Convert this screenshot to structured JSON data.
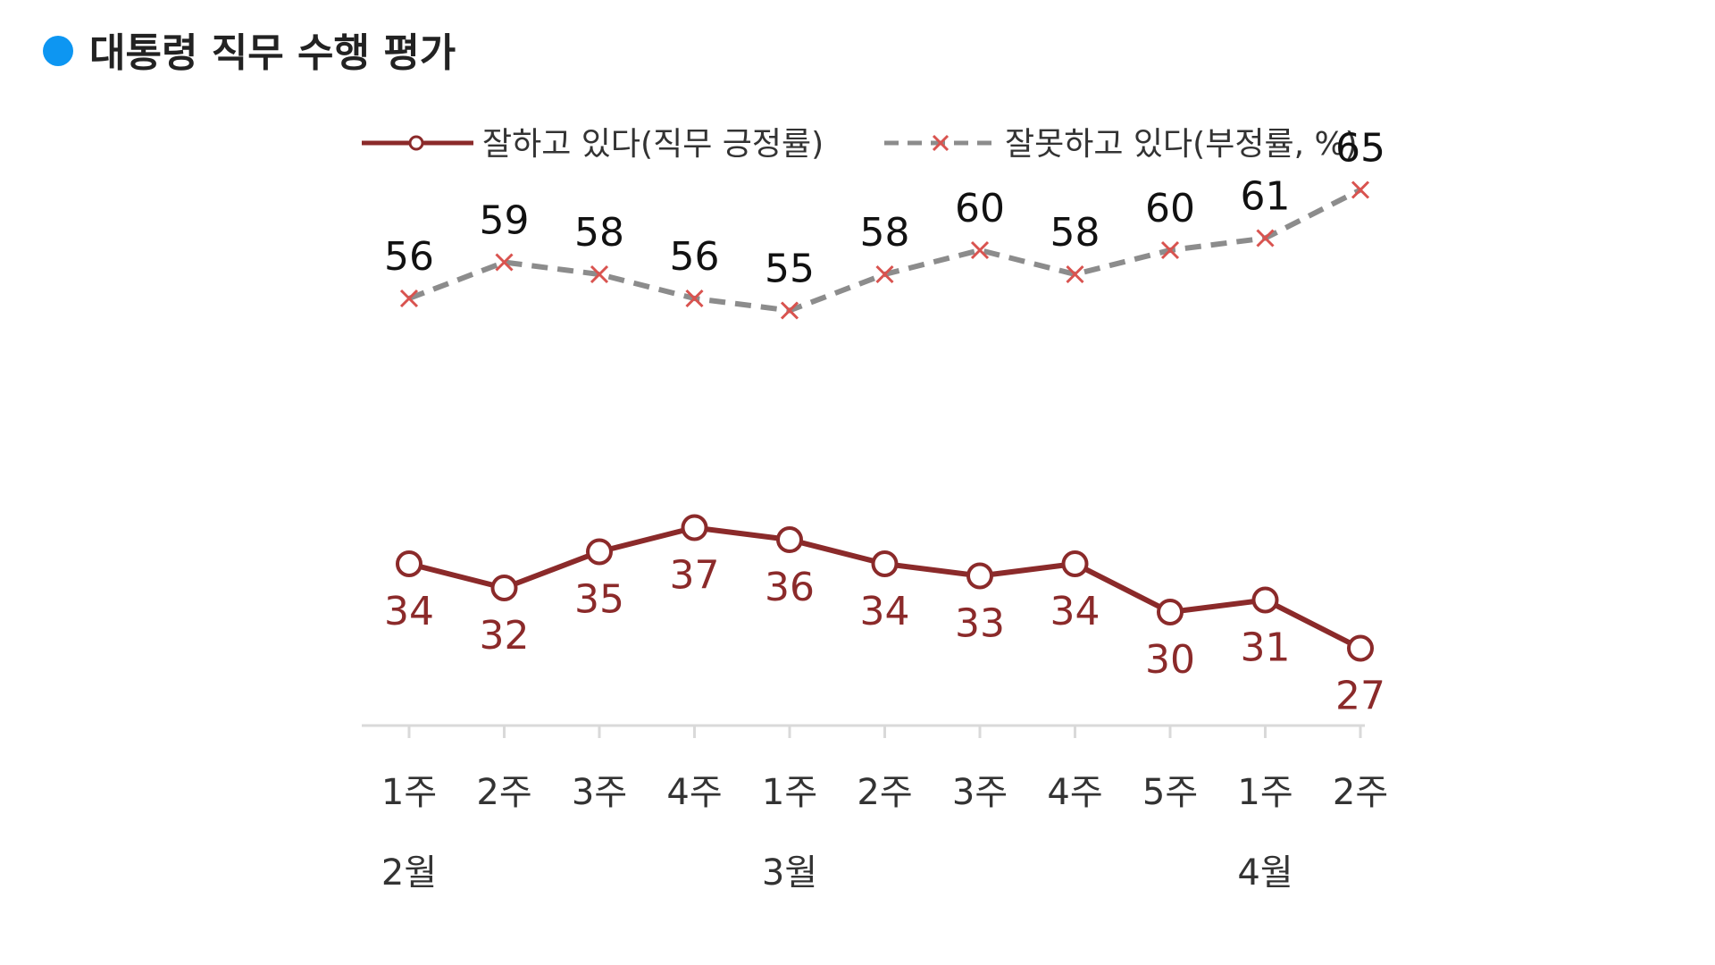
{
  "chart_data": {
    "type": "line",
    "title": "대통령 직무 수행 평가",
    "categories": [
      "1주",
      "2주",
      "3주",
      "4주",
      "1주",
      "2주",
      "3주",
      "4주",
      "5주",
      "1주",
      "2주"
    ],
    "months": [
      {
        "label": "2월",
        "index": 0
      },
      {
        "label": "3월",
        "index": 4
      },
      {
        "label": "4월",
        "index": 9
      }
    ],
    "series": [
      {
        "name": "잘하고 있다(직무 긍정률)",
        "values": [
          34,
          32,
          35,
          37,
          36,
          34,
          33,
          34,
          30,
          31,
          27
        ],
        "color": "#8b2a2a",
        "style": "solid",
        "marker": "circle"
      },
      {
        "name": "잘못하고 있다(부정률, %)",
        "values": [
          56,
          59,
          58,
          56,
          55,
          58,
          60,
          58,
          60,
          61,
          65
        ],
        "color": "#8c8c8c",
        "marker_color": "#d9534f",
        "style": "dashed",
        "marker": "x"
      }
    ],
    "title_dot_color": "#0d96f2",
    "xlabel": "",
    "ylabel": "",
    "ylim": [
      0,
      75
    ],
    "grid": false,
    "legend_position": "top"
  }
}
